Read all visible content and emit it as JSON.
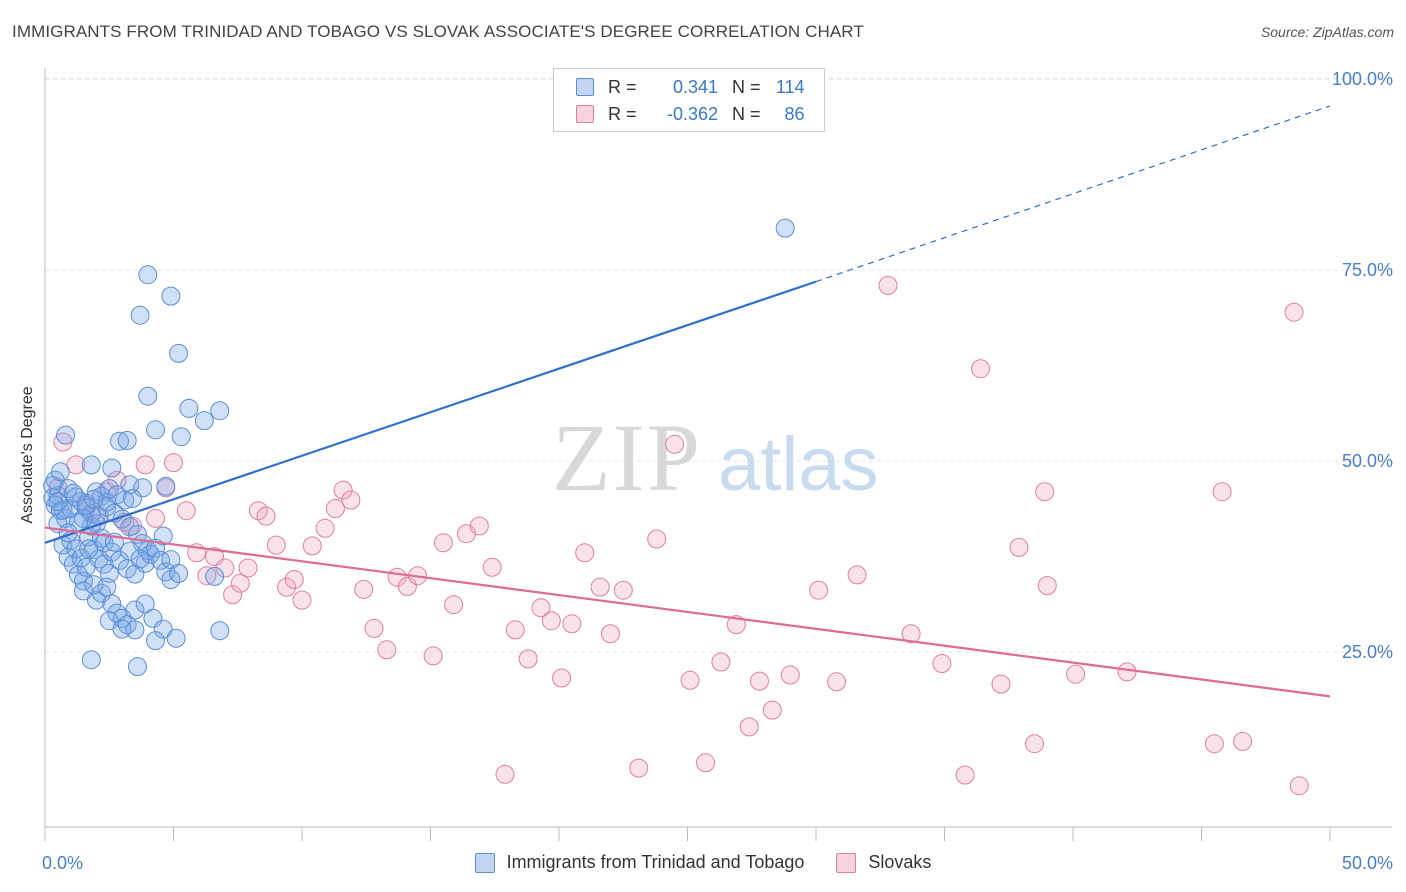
{
  "title": "IMMIGRANTS FROM TRINIDAD AND TOBAGO VS SLOVAK ASSOCIATE'S DEGREE CORRELATION CHART",
  "source": "Source: ZipAtlas.com",
  "watermark": {
    "zip": "ZIP",
    "atlas": "atlas"
  },
  "legend_top": [
    {
      "r_label": "R =",
      "r_value": "0.341",
      "n_label": "N =",
      "n_value": "114"
    },
    {
      "r_label": "R =",
      "r_value": "-0.362",
      "n_label": "N =",
      "n_value": "86"
    }
  ],
  "legend_bottom": [
    "Immigrants from Trinidad and Tobago",
    "Slovaks"
  ],
  "chart_data": {
    "type": "scatter",
    "title": "IMMIGRANTS FROM TRINIDAD AND TOBAGO VS SLOVAK ASSOCIATE'S DEGREE CORRELATION CHART",
    "xlabel": "",
    "ylabel": "Associate's Degree",
    "xlim": [
      0,
      50
    ],
    "ylim": [
      0,
      105
    ],
    "x_tick_labels": [
      "0.0%",
      "50.0%"
    ],
    "y_tick_labels": [
      "25.0%",
      "50.0%",
      "75.0%",
      "100.0%"
    ],
    "y_ticks": [
      25,
      50,
      75,
      100
    ],
    "grid": true,
    "legend_position": "top-center",
    "colors": {
      "blue": "#5b8fd8",
      "blue_fill": "rgba(120,165,230,0.35)",
      "blue_line": "#2f6fd0",
      "pink": "#e07fa0",
      "pink_fill": "rgba(240,160,190,0.3)",
      "pink_line": "#e06a95"
    },
    "series": [
      {
        "name": "Immigrants from Trinidad and Tobago",
        "color": "blue",
        "trend": {
          "x0": 0,
          "y0": 39.3,
          "x1": 30,
          "y1": 73.5,
          "dash_to_x": 50,
          "dash_to_y": 96.5
        },
        "points": [
          [
            0.3,
            46.8
          ],
          [
            0.5,
            45.5
          ],
          [
            0.4,
            44.2
          ],
          [
            0.6,
            43.5
          ],
          [
            0.8,
            42.5
          ],
          [
            1.0,
            43.8
          ],
          [
            0.5,
            41.8
          ],
          [
            0.7,
            39.0
          ],
          [
            0.9,
            37.4
          ],
          [
            1.1,
            36.5
          ],
          [
            1.3,
            35.1
          ],
          [
            1.5,
            34.3
          ],
          [
            0.3,
            45.2
          ],
          [
            0.4,
            47.5
          ],
          [
            0.6,
            48.6
          ],
          [
            0.8,
            53.4
          ],
          [
            0.9,
            46.4
          ],
          [
            1.2,
            45.3
          ],
          [
            1.4,
            44.7
          ],
          [
            1.6,
            43.9
          ],
          [
            1.8,
            43.1
          ],
          [
            2.0,
            46.0
          ],
          [
            2.2,
            45.4
          ],
          [
            2.4,
            44.6
          ],
          [
            1.7,
            40.1
          ],
          [
            1.9,
            38.4
          ],
          [
            2.1,
            37.2
          ],
          [
            2.3,
            36.5
          ],
          [
            2.5,
            35.3
          ],
          [
            1.0,
            39.6
          ],
          [
            1.2,
            38.5
          ],
          [
            1.4,
            37.3
          ],
          [
            1.6,
            36.1
          ],
          [
            2.0,
            31.8
          ],
          [
            2.2,
            32.7
          ],
          [
            2.4,
            33.5
          ],
          [
            2.6,
            31.3
          ],
          [
            2.8,
            30.1
          ],
          [
            3.0,
            29.4
          ],
          [
            3.2,
            28.6
          ],
          [
            1.8,
            41.5
          ],
          [
            2.1,
            42.8
          ],
          [
            2.4,
            44.0
          ],
          [
            2.7,
            43.2
          ],
          [
            3.0,
            42.4
          ],
          [
            3.3,
            41.4
          ],
          [
            3.6,
            40.4
          ],
          [
            3.8,
            39.2
          ],
          [
            4.0,
            38.3
          ],
          [
            2.3,
            39.3
          ],
          [
            2.6,
            38.1
          ],
          [
            2.9,
            37.0
          ],
          [
            3.2,
            35.9
          ],
          [
            3.5,
            35.2
          ],
          [
            3.9,
            36.6
          ],
          [
            4.1,
            37.8
          ],
          [
            4.3,
            38.6
          ],
          [
            4.5,
            37.0
          ],
          [
            4.7,
            35.5
          ],
          [
            4.9,
            34.5
          ],
          [
            3.5,
            30.5
          ],
          [
            3.9,
            31.3
          ],
          [
            4.2,
            29.4
          ],
          [
            4.6,
            28.0
          ],
          [
            5.1,
            26.8
          ],
          [
            4.3,
            26.5
          ],
          [
            3.5,
            27.9
          ],
          [
            1.8,
            24.0
          ],
          [
            3.6,
            23.1
          ],
          [
            2.9,
            52.6
          ],
          [
            3.2,
            52.7
          ],
          [
            4.3,
            54.1
          ],
          [
            5.3,
            53.2
          ],
          [
            4.0,
            58.5
          ],
          [
            3.7,
            69.1
          ],
          [
            4.0,
            74.4
          ],
          [
            4.9,
            71.6
          ],
          [
            5.2,
            64.1
          ],
          [
            5.6,
            56.9
          ],
          [
            6.2,
            55.3
          ],
          [
            6.8,
            56.6
          ],
          [
            1.8,
            49.5
          ],
          [
            2.6,
            49.1
          ],
          [
            3.3,
            46.9
          ],
          [
            3.8,
            46.5
          ],
          [
            4.7,
            46.7
          ],
          [
            4.6,
            40.2
          ],
          [
            4.9,
            37.1
          ],
          [
            5.2,
            35.3
          ],
          [
            6.6,
            34.9
          ],
          [
            6.8,
            27.8
          ],
          [
            3.1,
            44.9
          ],
          [
            2.0,
            41.8
          ],
          [
            1.5,
            42.5
          ],
          [
            1.3,
            42.0
          ],
          [
            0.7,
            43.6
          ],
          [
            0.5,
            44.7
          ],
          [
            1.1,
            45.8
          ],
          [
            1.6,
            44.2
          ],
          [
            1.9,
            45.0
          ],
          [
            2.5,
            46.4
          ],
          [
            2.8,
            45.6
          ],
          [
            3.4,
            45.1
          ],
          [
            2.2,
            39.9
          ],
          [
            2.7,
            39.4
          ],
          [
            3.3,
            38.2
          ],
          [
            3.7,
            37.2
          ],
          [
            1.5,
            33.0
          ],
          [
            1.9,
            33.8
          ],
          [
            2.5,
            29.1
          ],
          [
            3.0,
            28.0
          ],
          [
            28.8,
            80.5
          ],
          [
            0.9,
            40.6
          ],
          [
            1.7,
            38.5
          ]
        ]
      },
      {
        "name": "Slovaks",
        "color": "pink",
        "trend": {
          "x0": 0,
          "y0": 41.3,
          "x1": 50,
          "y1": 19.2
        },
        "points": [
          [
            0.5,
            46.5
          ],
          [
            0.7,
            52.5
          ],
          [
            1.2,
            49.5
          ],
          [
            1.6,
            44.5
          ],
          [
            2.0,
            43.0
          ],
          [
            2.4,
            46.0
          ],
          [
            2.8,
            47.5
          ],
          [
            3.1,
            42.0
          ],
          [
            3.4,
            41.5
          ],
          [
            3.9,
            49.5
          ],
          [
            4.3,
            42.5
          ],
          [
            4.7,
            46.5
          ],
          [
            5.0,
            49.8
          ],
          [
            5.5,
            43.5
          ],
          [
            5.9,
            38.0
          ],
          [
            6.3,
            35.0
          ],
          [
            6.6,
            37.5
          ],
          [
            7.0,
            36.0
          ],
          [
            7.3,
            32.5
          ],
          [
            7.6,
            34.0
          ],
          [
            7.9,
            36.0
          ],
          [
            8.3,
            43.5
          ],
          [
            8.6,
            42.8
          ],
          [
            9.0,
            39.0
          ],
          [
            9.4,
            33.5
          ],
          [
            9.7,
            34.5
          ],
          [
            10.0,
            31.8
          ],
          [
            10.4,
            38.9
          ],
          [
            10.9,
            41.2
          ],
          [
            11.3,
            43.8
          ],
          [
            11.6,
            46.2
          ],
          [
            11.9,
            44.9
          ],
          [
            12.4,
            33.2
          ],
          [
            12.8,
            28.1
          ],
          [
            13.3,
            25.3
          ],
          [
            13.7,
            34.8
          ],
          [
            14.1,
            33.6
          ],
          [
            14.5,
            35.0
          ],
          [
            15.1,
            24.5
          ],
          [
            15.5,
            39.3
          ],
          [
            15.9,
            31.2
          ],
          [
            16.4,
            40.5
          ],
          [
            16.9,
            41.5
          ],
          [
            17.4,
            36.1
          ],
          [
            17.9,
            9.0
          ],
          [
            18.3,
            27.9
          ],
          [
            18.8,
            24.1
          ],
          [
            19.3,
            30.8
          ],
          [
            19.7,
            29.1
          ],
          [
            20.1,
            21.6
          ],
          [
            20.5,
            28.7
          ],
          [
            21.0,
            38.0
          ],
          [
            21.6,
            33.5
          ],
          [
            22.0,
            27.4
          ],
          [
            22.5,
            33.1
          ],
          [
            23.1,
            9.8
          ],
          [
            23.8,
            39.8
          ],
          [
            24.5,
            52.2
          ],
          [
            25.1,
            21.3
          ],
          [
            25.7,
            10.5
          ],
          [
            26.3,
            23.7
          ],
          [
            26.9,
            28.6
          ],
          [
            27.4,
            15.2
          ],
          [
            27.8,
            21.2
          ],
          [
            28.3,
            17.4
          ],
          [
            29.0,
            22.0
          ],
          [
            30.1,
            33.1
          ],
          [
            30.8,
            21.1
          ],
          [
            31.6,
            35.1
          ],
          [
            32.8,
            73.0
          ],
          [
            33.7,
            27.4
          ],
          [
            34.9,
            23.5
          ],
          [
            36.4,
            62.1
          ],
          [
            37.2,
            20.8
          ],
          [
            37.9,
            38.7
          ],
          [
            38.5,
            13.0
          ],
          [
            39.0,
            33.7
          ],
          [
            40.1,
            22.1
          ],
          [
            42.1,
            22.4
          ],
          [
            48.6,
            69.5
          ],
          [
            48.8,
            7.5
          ],
          [
            45.5,
            13.0
          ],
          [
            38.9,
            46.0
          ],
          [
            35.8,
            8.9
          ],
          [
            45.8,
            46.0
          ],
          [
            46.6,
            13.3
          ]
        ]
      }
    ]
  }
}
